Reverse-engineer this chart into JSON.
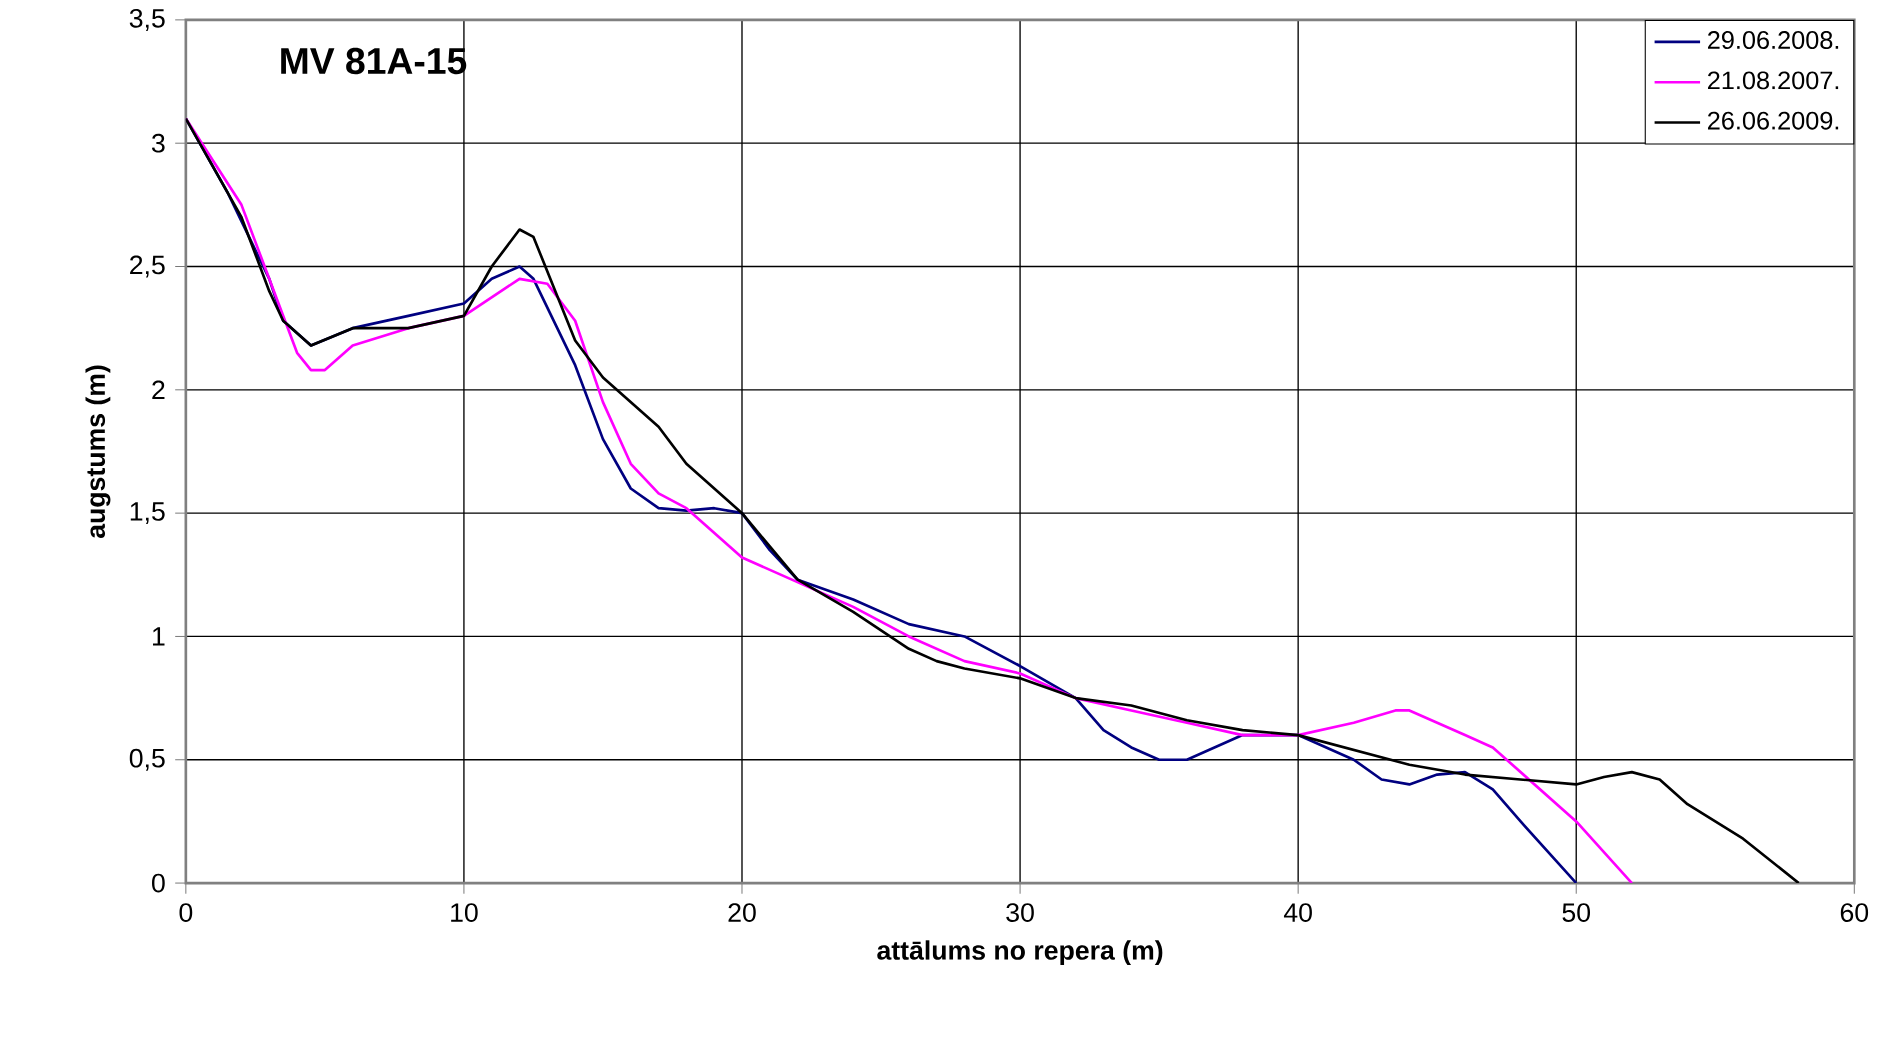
{
  "chart_data": {
    "type": "line",
    "title": "MV 81A-15",
    "xlabel": "attālums no repera (m)",
    "ylabel": "augstums (m)",
    "xlim": [
      0,
      60
    ],
    "xticks": [
      0,
      10,
      20,
      30,
      40,
      50,
      60
    ],
    "ylim": [
      0,
      3.5
    ],
    "yticks": [
      0,
      {
        "value": 0.5,
        "label": "0,5"
      },
      1,
      {
        "value": 1.5,
        "label": "1,5"
      },
      2,
      {
        "value": 2.5,
        "label": "2,5"
      },
      3,
      {
        "value": 3.5,
        "label": "3,5"
      }
    ],
    "grid": true,
    "legend": "top right",
    "series": [
      {
        "name": "29.06.2008.",
        "color": "#000080",
        "x": [
          0,
          1.5,
          3,
          3.5,
          4.5,
          6,
          8,
          10,
          11,
          12,
          12.5,
          14,
          15,
          16,
          17,
          18,
          19,
          20,
          21,
          22,
          24,
          26,
          28,
          30,
          32,
          33,
          34,
          35,
          36,
          38,
          40,
          42,
          43,
          44,
          45,
          46,
          47,
          48,
          50
        ],
        "values": [
          3.1,
          2.8,
          2.45,
          2.28,
          2.18,
          2.25,
          2.3,
          2.35,
          2.45,
          2.5,
          2.45,
          2.1,
          1.8,
          1.6,
          1.52,
          1.51,
          1.52,
          1.5,
          1.35,
          1.23,
          1.15,
          1.05,
          1.0,
          0.88,
          0.75,
          0.62,
          0.55,
          0.5,
          0.5,
          0.6,
          0.6,
          0.5,
          0.42,
          0.4,
          0.44,
          0.45,
          0.38,
          0.25,
          0
        ]
      },
      {
        "name": "21.08.2007.",
        "color": "#ff00ff",
        "x": [
          0,
          2,
          3,
          4,
          4.5,
          5,
          6,
          8,
          10,
          12,
          13,
          14,
          15,
          16,
          17,
          18,
          20,
          22,
          24,
          26,
          28,
          30,
          32,
          34,
          36,
          38,
          40,
          42,
          43.5,
          44,
          46,
          47,
          48,
          50,
          52
        ],
        "values": [
          3.1,
          2.75,
          2.45,
          2.15,
          2.08,
          2.08,
          2.18,
          2.25,
          2.3,
          2.45,
          2.43,
          2.28,
          1.95,
          1.7,
          1.58,
          1.52,
          1.32,
          1.22,
          1.12,
          1.0,
          0.9,
          0.85,
          0.75,
          0.7,
          0.65,
          0.6,
          0.6,
          0.65,
          0.7,
          0.7,
          0.6,
          0.55,
          0.45,
          0.25,
          0
        ]
      },
      {
        "name": "26.06.2009.",
        "color": "#000000",
        "x": [
          0,
          2,
          3,
          3.5,
          4.5,
          6,
          8,
          10,
          11,
          12,
          12.5,
          14,
          15,
          17,
          18,
          20,
          22,
          24,
          26,
          27,
          28,
          30,
          32,
          34,
          36,
          38,
          40,
          42,
          44,
          46,
          48,
          50,
          51,
          52,
          53,
          54,
          56,
          58
        ],
        "values": [
          3.1,
          2.7,
          2.4,
          2.28,
          2.18,
          2.25,
          2.25,
          2.3,
          2.5,
          2.65,
          2.62,
          2.2,
          2.05,
          1.85,
          1.7,
          1.5,
          1.23,
          1.1,
          0.95,
          0.9,
          0.87,
          0.83,
          0.75,
          0.72,
          0.66,
          0.62,
          0.6,
          0.54,
          0.48,
          0.44,
          0.42,
          0.4,
          0.43,
          0.45,
          0.42,
          0.32,
          0.18,
          0
        ]
      }
    ]
  }
}
